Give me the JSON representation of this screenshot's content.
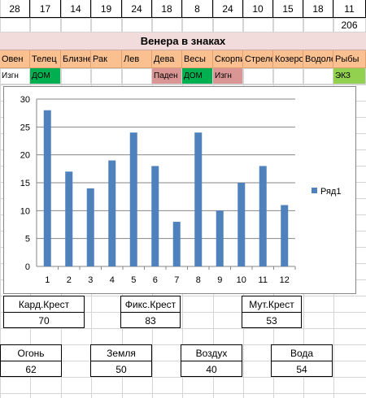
{
  "top_numbers": [
    "28",
    "17",
    "14",
    "19",
    "24",
    "18",
    "8",
    "24",
    "10",
    "15",
    "18",
    "11"
  ],
  "total": "206",
  "title": "Венера в знаках",
  "signs": [
    "Овен",
    "Телец",
    "Близнецы",
    "Рак",
    "Лев",
    "Дева",
    "Весы",
    "Скорпион",
    "Стрелец",
    "Козерог",
    "Водолей",
    "Рыбы"
  ],
  "statuses": [
    "Изгн",
    "ДОМ",
    "",
    "",
    "",
    "Паден",
    "ДОМ",
    "Изгн",
    "",
    "",
    "",
    "ЭКЗ"
  ],
  "status_colors": {
    "ДОМ": "#00b050",
    "Паден": "#da9694",
    "Изгн": "#da9694",
    "ЭКЗ": "#92d050"
  },
  "crosses": [
    {
      "label": "Кард.Крест",
      "value": "70"
    },
    {
      "label": "Фикс.Крест",
      "value": "83"
    },
    {
      "label": "Мут.Крест",
      "value": "53"
    }
  ],
  "elements": [
    {
      "label": "Огонь",
      "value": "62"
    },
    {
      "label": "Земля",
      "value": "50"
    },
    {
      "label": "Воздух",
      "value": "40"
    },
    {
      "label": "Вода",
      "value": "54"
    }
  ],
  "chart_data": {
    "type": "bar",
    "categories": [
      "1",
      "2",
      "3",
      "4",
      "5",
      "6",
      "7",
      "8",
      "9",
      "10",
      "11",
      "12"
    ],
    "series": [
      {
        "name": "Ряд1",
        "values": [
          28,
          17,
          14,
          19,
          24,
          18,
          8,
          24,
          10,
          15,
          18,
          11
        ]
      }
    ],
    "ylim": [
      0,
      30
    ],
    "yticks": [
      0,
      5,
      10,
      15,
      20,
      25,
      30
    ],
    "grid": true,
    "legend": "right",
    "bar_color": "#4f81bd"
  }
}
